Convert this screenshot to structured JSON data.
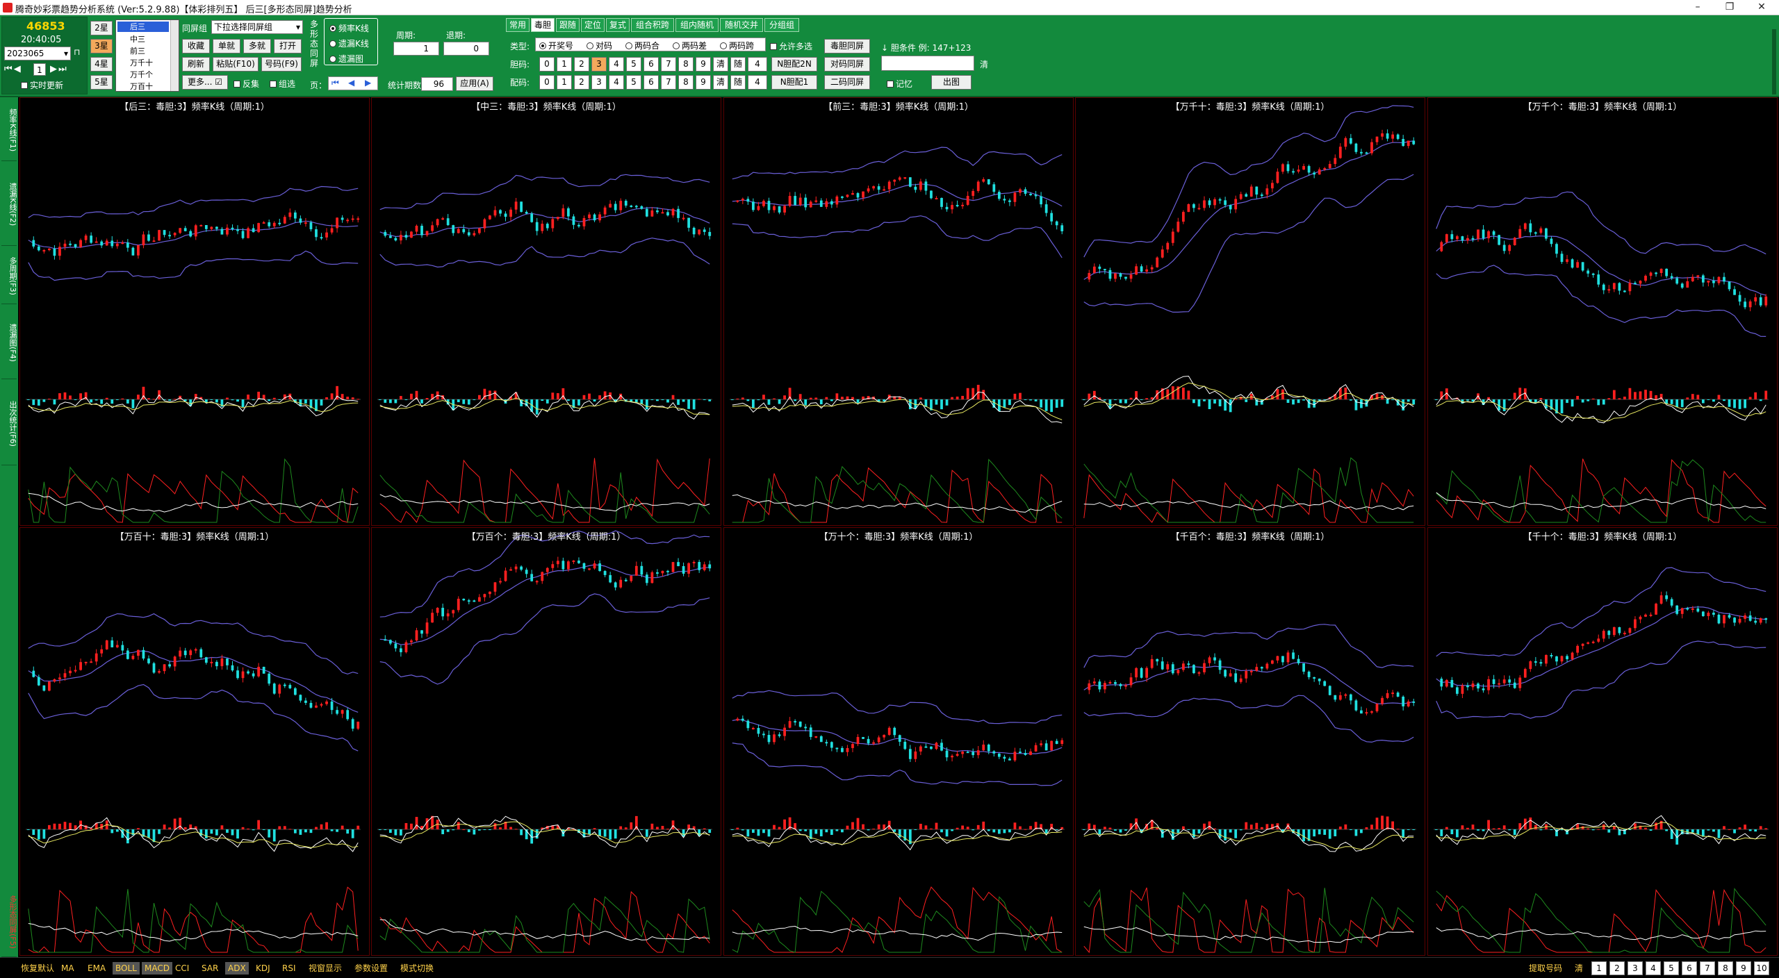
{
  "window": {
    "title": "腾奇妙彩票趋势分析系统 (Ver:5.2.9.88)【体彩排列五】  后三[多形态同屏]趋势分析",
    "minimize": "–",
    "restore": "❐",
    "close": "✕"
  },
  "left": {
    "count": "46853",
    "time": "20:40:05",
    "period": "2023065",
    "stars": [
      "2星",
      "3星",
      "4星",
      "5星"
    ],
    "active_star": "3星",
    "nav_num": "1",
    "realtime_label": "实时更新",
    "positions": [
      "后三",
      "中三",
      "前三",
      "万千十",
      "万千个",
      "万百十"
    ],
    "selected_position": "后三"
  },
  "group": {
    "label": "同屏组",
    "select_value": "下拉选择同屏组",
    "buttons": [
      "收藏",
      "单就",
      "多就",
      "打开",
      "刷新",
      "粘贴(F10)",
      "号码(F9)"
    ],
    "more": "更多...",
    "reverse_label": "反集",
    "filter_label": "组选"
  },
  "multi": {
    "vlabel": "多形态同屏",
    "modes": [
      "频率K线",
      "遗漏K线",
      "遗漏图"
    ],
    "active_mode": "频率K线",
    "page_label": "页：",
    "period_label": "周期:",
    "period_value": "1",
    "back_label": "退期:",
    "back_value": "0",
    "periods_label": "统计期数:",
    "periods_value": "96",
    "apply": "应用(A)"
  },
  "tabs": [
    "常用",
    "毒胆",
    "跟随",
    "定位",
    "复式",
    "组合积跨",
    "组内随机",
    "随机交并",
    "分组组"
  ],
  "active_tab": "毒胆",
  "dudan": {
    "type_label": "类型:",
    "types": [
      "开奖号",
      "对码",
      "两码合",
      "两码差",
      "两码跨"
    ],
    "active_type": "开奖号",
    "allow_multi": "允许多选",
    "dudan_same": "毒胆同屏",
    "dan_label": "胆码:",
    "pei_label": "配码:",
    "digits": [
      "0",
      "1",
      "2",
      "3",
      "4",
      "5",
      "6",
      "7",
      "8",
      "9"
    ],
    "active_digit": "3",
    "clear": "清",
    "rand": "随",
    "spin": "4",
    "n_dan_2": "N胆配2N",
    "duima_same": "对码同屏",
    "n_dan_1": "N胆配1",
    "erma_same": "二码同屏",
    "cond_label": "↓ 胆条件 例: 147+123",
    "cond_clear": "清",
    "remember": "记忆",
    "output": "出图"
  },
  "panels": [
    {
      "title": "【后三：毒胆:3】频率K线（周期:1）"
    },
    {
      "title": "【中三：毒胆:3】频率K线（周期:1）"
    },
    {
      "title": "【前三：毒胆:3】频率K线（周期:1）"
    },
    {
      "title": "【万千十：毒胆:3】频率K线（周期:1）"
    },
    {
      "title": "【万千个：毒胆:3】频率K线（周期:1）"
    },
    {
      "title": "【万百十：毒胆:3】频率K线（周期:1）"
    },
    {
      "title": "【万百个：毒胆:3】频率K线（周期:1）"
    },
    {
      "title": "【万十个：毒胆:3】频率K线（周期:1）"
    },
    {
      "title": "【千百个：毒胆:3】频率K线（周期:1）"
    },
    {
      "title": "【千十个：毒胆:3】频率K线（周期:1）"
    }
  ],
  "vtabs": [
    "频率K线(F1)",
    "遗漏K线(F2)",
    "多周期(F3)",
    "遗漏图(F4)",
    "出次统计(F6)",
    "多形态同屏(F5)"
  ],
  "status": {
    "items": [
      "恢复默认",
      "MA",
      "EMA",
      "BOLL",
      "MACD",
      "CCI",
      "SAR",
      "ADX",
      "KDJ",
      "RSI",
      "视窗显示",
      "参数设置",
      "模式切换"
    ],
    "highlighted": [
      "BOLL",
      "MACD",
      "ADX"
    ],
    "fetch_label": "提取号码",
    "fetch_clear": "清",
    "pages": [
      "1",
      "2",
      "3",
      "4",
      "5",
      "6",
      "7",
      "8",
      "9",
      "10"
    ]
  },
  "colors": {
    "toolbar_bg": "#138a3d",
    "candle_up": "#ff2020",
    "candle_down": "#20e0e0",
    "band": "#6a5fd8",
    "accent_orange": "#f3a95c"
  }
}
